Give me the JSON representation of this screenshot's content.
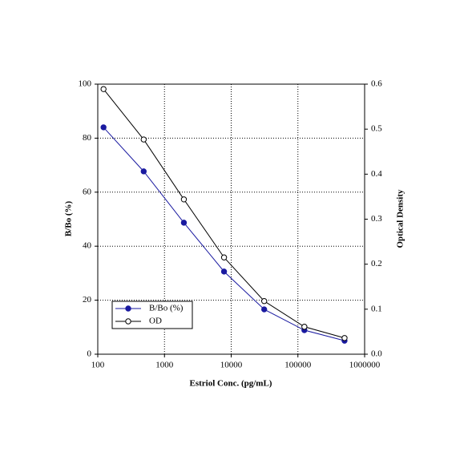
{
  "chart_data": {
    "type": "line",
    "x_label": "Estriol Conc. (pg/mL)",
    "y_label": "B/Bo (%)",
    "y2_label": "Optical Density",
    "x": [
      122,
      488,
      1953,
      7813,
      31250,
      125000,
      500000
    ],
    "x_scale": "log",
    "xlim": [
      100,
      1000000
    ],
    "xticks": [
      100,
      1000,
      10000,
      100000,
      1000000
    ],
    "ylim": [
      0,
      100
    ],
    "yticks": [
      0,
      20,
      40,
      60,
      80,
      100
    ],
    "y2lim": [
      0,
      0.6
    ],
    "y2ticks": [
      {
        "value": 0,
        "label": "0.0"
      },
      0.1,
      0.2,
      0.3,
      0.4,
      0.5,
      0.6
    ],
    "grid": true,
    "legend": "lower left",
    "series": [
      {
        "name": "B/Bo (%)",
        "color": "#1a1aa0",
        "marker": "filled",
        "values": [
          84.0,
          67.7,
          48.7,
          30.6,
          16.6,
          8.9,
          5.0
        ]
      },
      {
        "name": "OD",
        "color": "#000000",
        "marker": "open",
        "axis": "y2",
        "values": [
          0.589,
          0.477,
          0.344,
          0.215,
          0.118,
          0.061,
          0.036
        ]
      }
    ]
  }
}
